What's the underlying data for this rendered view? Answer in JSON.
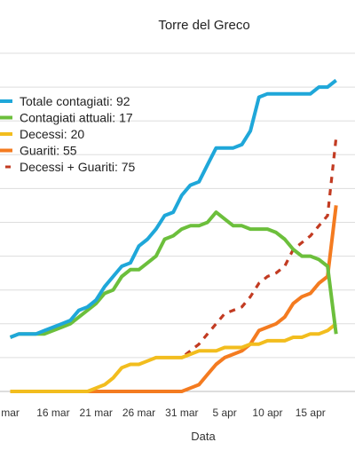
{
  "chart_data": {
    "type": "line",
    "title": "Torre del Greco",
    "xlabel": "Data",
    "ylabel": "",
    "x_tick_labels": [
      "mar",
      "16 mar",
      "21 mar",
      "26 mar",
      "31 mar",
      "5 apr",
      "10 apr",
      "15 apr"
    ],
    "ylim": [
      0,
      100
    ],
    "grid": true,
    "legend_position": "upper-left",
    "x": [
      11,
      12,
      13,
      14,
      15,
      16,
      17,
      18,
      19,
      20,
      21,
      22,
      23,
      24,
      25,
      26,
      27,
      28,
      29,
      30,
      31,
      32,
      33,
      34,
      35,
      36,
      37,
      38,
      39,
      40,
      41,
      42,
      43,
      44,
      45,
      46,
      47,
      48,
      49
    ],
    "series": [
      {
        "name": "Totale contagiati: 92",
        "color": "#1fa7d9",
        "dash": "solid",
        "values": [
          16,
          17,
          17,
          17,
          18,
          19,
          20,
          21,
          24,
          25,
          27,
          31,
          34,
          37,
          38,
          43,
          45,
          48,
          52,
          53,
          58,
          61,
          62,
          67,
          72,
          72,
          72,
          73,
          77,
          87,
          88,
          88,
          88,
          88,
          88,
          88,
          90,
          90,
          92
        ]
      },
      {
        "name": "Contagiati attuali: 17",
        "color": "#6cbf3c",
        "dash": "solid",
        "values": [
          16,
          17,
          17,
          17,
          17,
          18,
          19,
          20,
          22,
          24,
          26,
          29,
          30,
          34,
          36,
          36,
          38,
          40,
          45,
          46,
          48,
          49,
          49,
          50,
          53,
          51,
          49,
          49,
          48,
          48,
          48,
          47,
          45,
          42,
          40,
          40,
          39,
          37,
          17
        ]
      },
      {
        "name": "Decessi: 20",
        "color": "#f2bd1e",
        "dash": "solid",
        "values": [
          0,
          0,
          0,
          0,
          0,
          0,
          0,
          0,
          0,
          0,
          1,
          2,
          4,
          7,
          8,
          8,
          9,
          10,
          10,
          10,
          10,
          11,
          12,
          12,
          12,
          13,
          13,
          13,
          14,
          14,
          15,
          15,
          15,
          16,
          16,
          17,
          17,
          18,
          20
        ]
      },
      {
        "name": "Guariti: 55",
        "color": "#f47b20",
        "dash": "solid",
        "values": [
          0,
          0,
          0,
          0,
          0,
          0,
          0,
          0,
          0,
          0,
          0,
          0,
          0,
          0,
          0,
          0,
          0,
          0,
          0,
          0,
          0,
          1,
          2,
          5,
          8,
          10,
          11,
          12,
          14,
          18,
          19,
          20,
          22,
          26,
          28,
          29,
          32,
          34,
          55
        ]
      },
      {
        "name": "Decessi + Guariti: 75",
        "color": "#c23b22",
        "dash": "dashed",
        "values": [
          0,
          0,
          0,
          0,
          0,
          0,
          0,
          0,
          0,
          0,
          1,
          2,
          4,
          7,
          8,
          8,
          9,
          10,
          10,
          10,
          10,
          12,
          14,
          17,
          20,
          23,
          24,
          25,
          28,
          32,
          34,
          35,
          37,
          42,
          44,
          46,
          49,
          52,
          75
        ]
      }
    ]
  }
}
